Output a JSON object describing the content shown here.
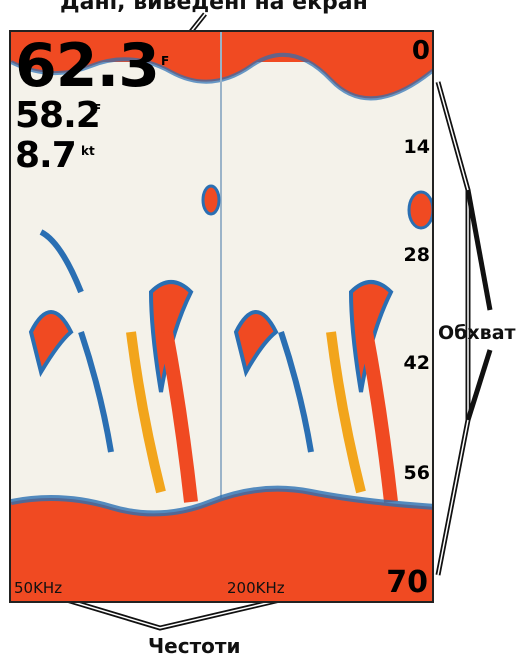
{
  "callouts": {
    "top_label": "Дані, виведені на екран",
    "range_label": "Обхват",
    "frequency_label": "Честоти"
  },
  "readouts": {
    "water_temp": "62.3",
    "water_temp_unit": "F",
    "air_temp": "58.2",
    "air_temp_unit": "F",
    "speed": "8.7",
    "speed_unit": "kt"
  },
  "depth_scale": [
    "0",
    "14",
    "28",
    "42",
    "56",
    "70"
  ],
  "frequencies": {
    "left": "50KHz",
    "right": "200KHz"
  },
  "colors": {
    "strong_return": "#f04a22",
    "medium_return": "#f2a51c",
    "weak_return": "#2a6fb3",
    "background": "#f4f2ea"
  }
}
